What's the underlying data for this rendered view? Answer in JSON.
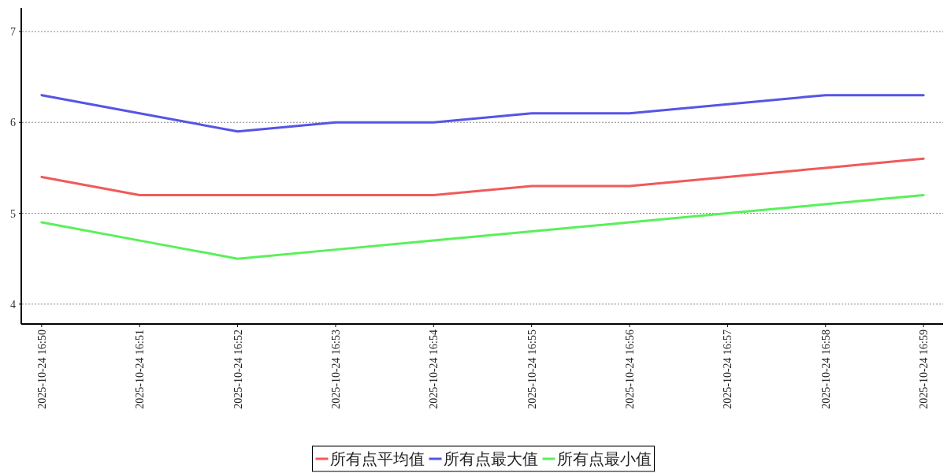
{
  "chart_data": {
    "type": "line",
    "categories": [
      "2025-10-24 16:50",
      "2025-10-24 16:51",
      "2025-10-24 16:52",
      "2025-10-24 16:53",
      "2025-10-24 16:54",
      "2025-10-24 16:55",
      "2025-10-24 16:56",
      "2025-10-24 16:57",
      "2025-10-24 16:58",
      "2025-10-24 16:59"
    ],
    "series": [
      {
        "name": "所有点平均值",
        "color": "#f05a5a",
        "values": [
          5.4,
          5.2,
          5.2,
          5.2,
          5.2,
          5.3,
          5.3,
          5.4,
          5.5,
          5.6
        ]
      },
      {
        "name": "所有点最大值",
        "color": "#5555e6",
        "values": [
          6.3,
          6.1,
          5.9,
          6.0,
          6.0,
          6.1,
          6.1,
          6.2,
          6.3,
          6.3
        ]
      },
      {
        "name": "所有点最小值",
        "color": "#5af05a",
        "values": [
          4.9,
          4.7,
          4.5,
          4.6,
          4.7,
          4.8,
          4.9,
          5.0,
          5.1,
          5.2
        ]
      }
    ],
    "ylim": [
      3.79,
      7.26
    ],
    "yticks": [
      4,
      5,
      6,
      7
    ],
    "grid": "y",
    "legend": "bottom"
  }
}
